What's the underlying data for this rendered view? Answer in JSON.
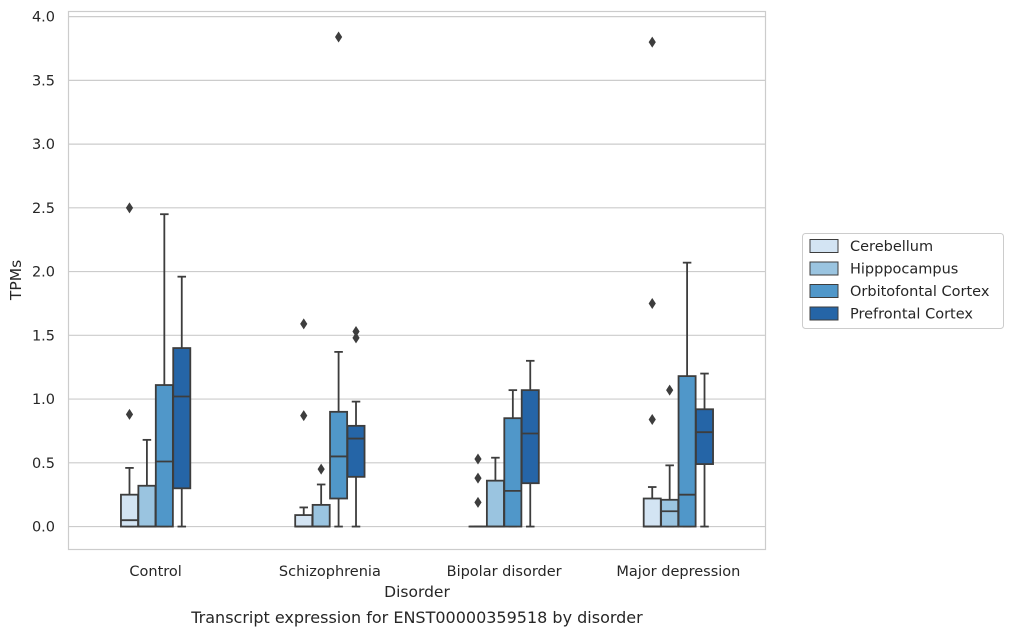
{
  "chart_data": {
    "type": "box",
    "ylabel": "TPMs",
    "xlabel": "Disorder",
    "caption": "Transcript expression for ENST00000359518 by disorder",
    "ylim": [
      -0.18,
      4.04
    ],
    "yticks": [
      "0.0",
      "0.5",
      "1.0",
      "1.5",
      "2.0",
      "2.5",
      "3.0",
      "3.5",
      "4.0"
    ],
    "grid": "horizontal",
    "legend_position": "right",
    "categories": [
      "Control",
      "Schizophrenia",
      "Bipolar disorder",
      "Major depression"
    ],
    "series": [
      {
        "name": "Cerebellum",
        "color": "#d3e4f3",
        "boxes": [
          {
            "whisker_low": 0.0,
            "q1": 0.0,
            "median": 0.05,
            "q3": 0.25,
            "whisker_high": 0.46,
            "outliers": [
              0.88,
              2.5
            ]
          },
          {
            "whisker_low": 0.0,
            "q1": 0.0,
            "median": 0.0,
            "q3": 0.09,
            "whisker_high": 0.15,
            "outliers": [
              0.87,
              1.59
            ]
          },
          {
            "whisker_low": 0.0,
            "q1": 0.0,
            "median": 0.0,
            "q3": 0.0,
            "whisker_high": 0.0,
            "outliers": [
              0.19,
              0.38,
              0.53
            ]
          },
          {
            "whisker_low": 0.0,
            "q1": 0.0,
            "median": 0.0,
            "q3": 0.22,
            "whisker_high": 0.31,
            "outliers": [
              0.84,
              1.75,
              3.8
            ]
          }
        ]
      },
      {
        "name": "Hipppocampus",
        "color": "#9ac4e0",
        "boxes": [
          {
            "whisker_low": 0.0,
            "q1": 0.0,
            "median": 0.0,
            "q3": 0.32,
            "whisker_high": 0.68,
            "outliers": []
          },
          {
            "whisker_low": 0.0,
            "q1": 0.0,
            "median": 0.0,
            "q3": 0.17,
            "whisker_high": 0.33,
            "outliers": [
              0.45
            ]
          },
          {
            "whisker_low": 0.0,
            "q1": 0.0,
            "median": 0.0,
            "q3": 0.36,
            "whisker_high": 0.54,
            "outliers": []
          },
          {
            "whisker_low": 0.0,
            "q1": 0.0,
            "median": 0.12,
            "q3": 0.21,
            "whisker_high": 0.48,
            "outliers": [
              1.07
            ]
          }
        ]
      },
      {
        "name": "Orbitofontal Cortex",
        "color": "#5097c9",
        "boxes": [
          {
            "whisker_low": 0.0,
            "q1": 0.0,
            "median": 0.51,
            "q3": 1.11,
            "whisker_high": 2.45,
            "outliers": []
          },
          {
            "whisker_low": 0.0,
            "q1": 0.22,
            "median": 0.55,
            "q3": 0.9,
            "whisker_high": 1.37,
            "outliers": [
              3.84
            ]
          },
          {
            "whisker_low": 0.0,
            "q1": 0.0,
            "median": 0.28,
            "q3": 0.85,
            "whisker_high": 1.07,
            "outliers": []
          },
          {
            "whisker_low": 0.0,
            "q1": 0.0,
            "median": 0.25,
            "q3": 1.18,
            "whisker_high": 2.07,
            "outliers": []
          }
        ]
      },
      {
        "name": "Prefrontal Cortex",
        "color": "#2565a7",
        "boxes": [
          {
            "whisker_low": 0.0,
            "q1": 0.3,
            "median": 1.02,
            "q3": 1.4,
            "whisker_high": 1.96,
            "outliers": []
          },
          {
            "whisker_low": 0.0,
            "q1": 0.39,
            "median": 0.69,
            "q3": 0.79,
            "whisker_high": 0.98,
            "outliers": [
              1.48,
              1.53
            ]
          },
          {
            "whisker_low": 0.0,
            "q1": 0.34,
            "median": 0.73,
            "q3": 1.07,
            "whisker_high": 1.3,
            "outliers": []
          },
          {
            "whisker_low": 0.0,
            "q1": 0.49,
            "median": 0.74,
            "q3": 0.92,
            "whisker_high": 1.2,
            "outliers": []
          }
        ]
      }
    ]
  }
}
